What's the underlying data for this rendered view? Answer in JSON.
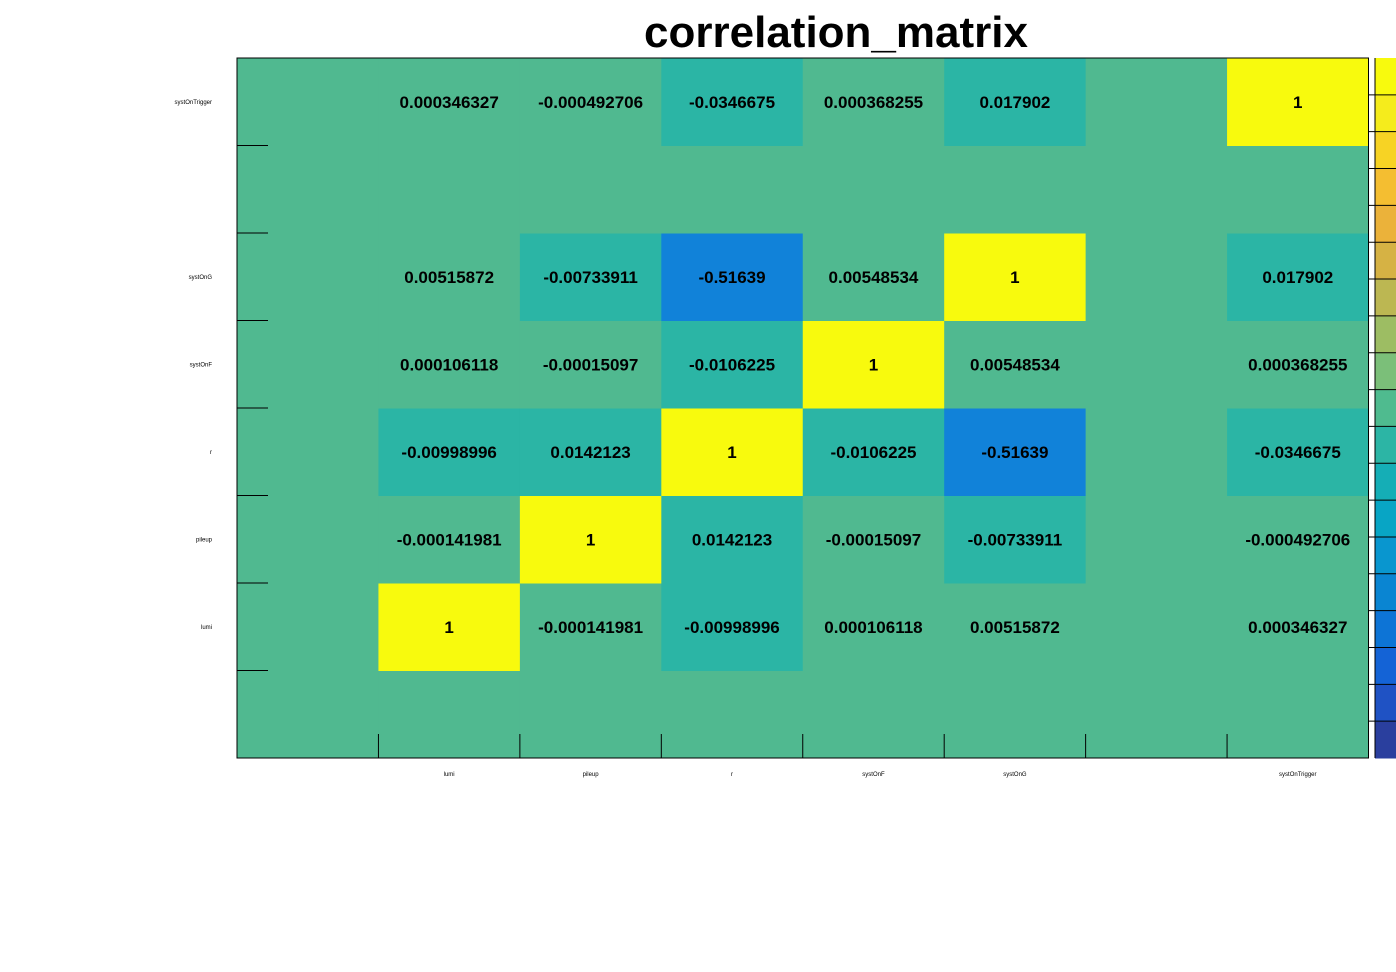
{
  "chart_data": {
    "type": "heatmap",
    "title": "correlation_matrix",
    "x_categories": [
      "",
      "lumi",
      "pileup",
      "r",
      "systOnF",
      "systOnG",
      "",
      "systOnTrigger"
    ],
    "y_categories": [
      "",
      "lumi",
      "pileup",
      "r",
      "systOnF",
      "systOnG",
      "",
      "systOnTrigger"
    ],
    "cells": [
      [
        0,
        0,
        0,
        0,
        0,
        0,
        0,
        0
      ],
      [
        0,
        1,
        -0.000141981,
        -0.00998996,
        0.000106118,
        0.00515872,
        0,
        0.000346327
      ],
      [
        0,
        -0.000141981,
        1,
        0.0142123,
        -0.00015097,
        -0.00733911,
        0,
        -0.000492706
      ],
      [
        0,
        -0.00998996,
        0.0142123,
        1,
        -0.0106225,
        -0.51639,
        0,
        -0.0346675
      ],
      [
        0,
        0.000106118,
        -0.00015097,
        -0.0106225,
        1,
        0.00548534,
        0,
        0.000368255
      ],
      [
        0,
        0.00515872,
        -0.00733911,
        -0.51639,
        0.00548534,
        1,
        0,
        0.017902
      ],
      [
        0,
        0,
        0,
        0,
        0,
        0,
        0,
        0
      ],
      [
        0,
        0.000346327,
        -0.000492706,
        -0.0346675,
        0.000368255,
        0.017902,
        0,
        1
      ]
    ],
    "cell_labels": [
      [
        "",
        "",
        "",
        "",
        "",
        "",
        "",
        ""
      ],
      [
        "",
        "1",
        "-0.000141981",
        "-0.00998996",
        "0.000106118",
        "0.00515872",
        "",
        "0.000346327"
      ],
      [
        "",
        "-0.000141981",
        "1",
        "0.0142123",
        "-0.00015097",
        "-0.00733911",
        "",
        "-0.000492706"
      ],
      [
        "",
        "-0.00998996",
        "0.0142123",
        "1",
        "-0.0106225",
        "-0.51639",
        "",
        "-0.0346675"
      ],
      [
        "",
        "0.000106118",
        "-0.00015097",
        "-0.0106225",
        "1",
        "0.00548534",
        "",
        "0.000368255"
      ],
      [
        "",
        "0.00515872",
        "-0.00733911",
        "-0.51639",
        "0.00548534",
        "1",
        "",
        "0.017902"
      ],
      [
        "",
        "",
        "",
        "",
        "",
        "",
        "",
        ""
      ],
      [
        "",
        "0.000346327",
        "-0.000492706",
        "-0.0346675",
        "0.000368255",
        "0.017902",
        "",
        "1"
      ]
    ],
    "zlim": [
      -1,
      1
    ],
    "colorbar": {
      "bands": [
        "#2a3f9e",
        "#1f52c4",
        "#1463d6",
        "#0d74d6",
        "#0a85d2",
        "#0996cf",
        "#08a5c5",
        "#15aeb6",
        "#2cb5a5",
        "#4fbb8f",
        "#7bbf79",
        "#9dbd63",
        "#bcb752",
        "#d6b244",
        "#ebb23a",
        "#f4be31",
        "#f7d324",
        "#f5ec1c",
        "#f8fa0d"
      ]
    },
    "colors": {
      "zero": "#50b990",
      "slight": "#2bb5a5",
      "strong_negative": "#1182d9",
      "one": "#f8fa0d"
    },
    "grid": false,
    "legend": "right"
  }
}
